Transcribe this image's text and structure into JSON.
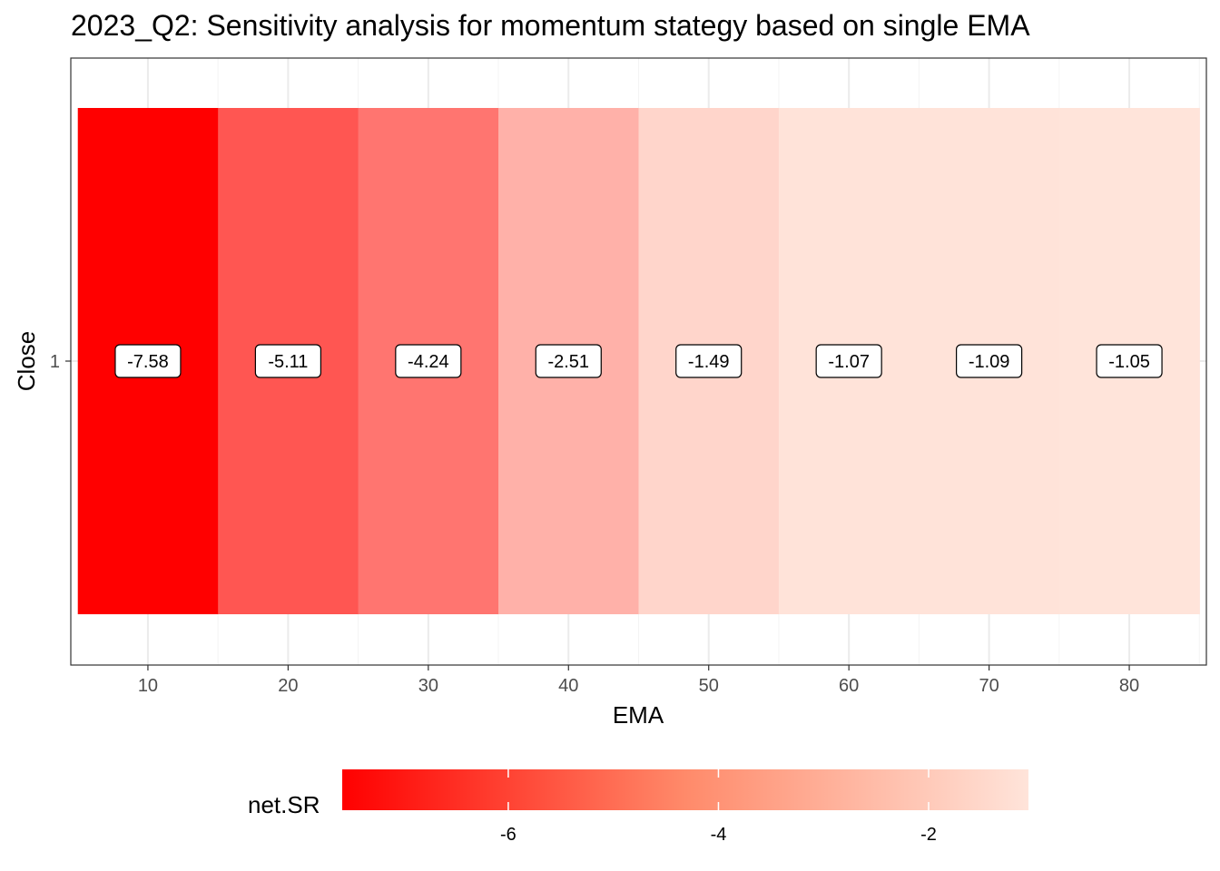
{
  "chart_data": {
    "type": "heatmap",
    "title": "2023_Q2: Sensitivity analysis for momentum stategy based on single EMA",
    "xlabel": "EMA",
    "ylabel": "Close",
    "x_ticks": [
      10,
      20,
      30,
      40,
      50,
      60,
      70,
      80
    ],
    "x_tick_labels": [
      "10",
      "20",
      "30",
      "40",
      "50",
      "60",
      "70",
      "80"
    ],
    "xlim": [
      4.5,
      85.5
    ],
    "y_categories": [
      "1"
    ],
    "tiles": [
      {
        "x": 10,
        "y": "1",
        "net_SR": -7.58,
        "label": "-7.58"
      },
      {
        "x": 20,
        "y": "1",
        "net_SR": -5.11,
        "label": "-5.11"
      },
      {
        "x": 30,
        "y": "1",
        "net_SR": -4.24,
        "label": "-4.24"
      },
      {
        "x": 40,
        "y": "1",
        "net_SR": -2.51,
        "label": "-2.51"
      },
      {
        "x": 50,
        "y": "1",
        "net_SR": -1.49,
        "label": "-1.49"
      },
      {
        "x": 60,
        "y": "1",
        "net_SR": -1.07,
        "label": "-1.07"
      },
      {
        "x": 70,
        "y": "1",
        "net_SR": -1.09,
        "label": "-1.09"
      },
      {
        "x": 80,
        "y": "1",
        "net_SR": -1.05,
        "label": "-1.05"
      }
    ],
    "tile_width": 10,
    "legend": {
      "title": "net.SR",
      "position": "bottom",
      "range": [
        -7.58,
        -1.05
      ],
      "breaks": [
        -6,
        -4,
        -2
      ],
      "break_labels": [
        "-6",
        "-4",
        "-2"
      ],
      "low_color": "#ff0000",
      "high_color": "#ffe4da"
    },
    "grid": true
  }
}
